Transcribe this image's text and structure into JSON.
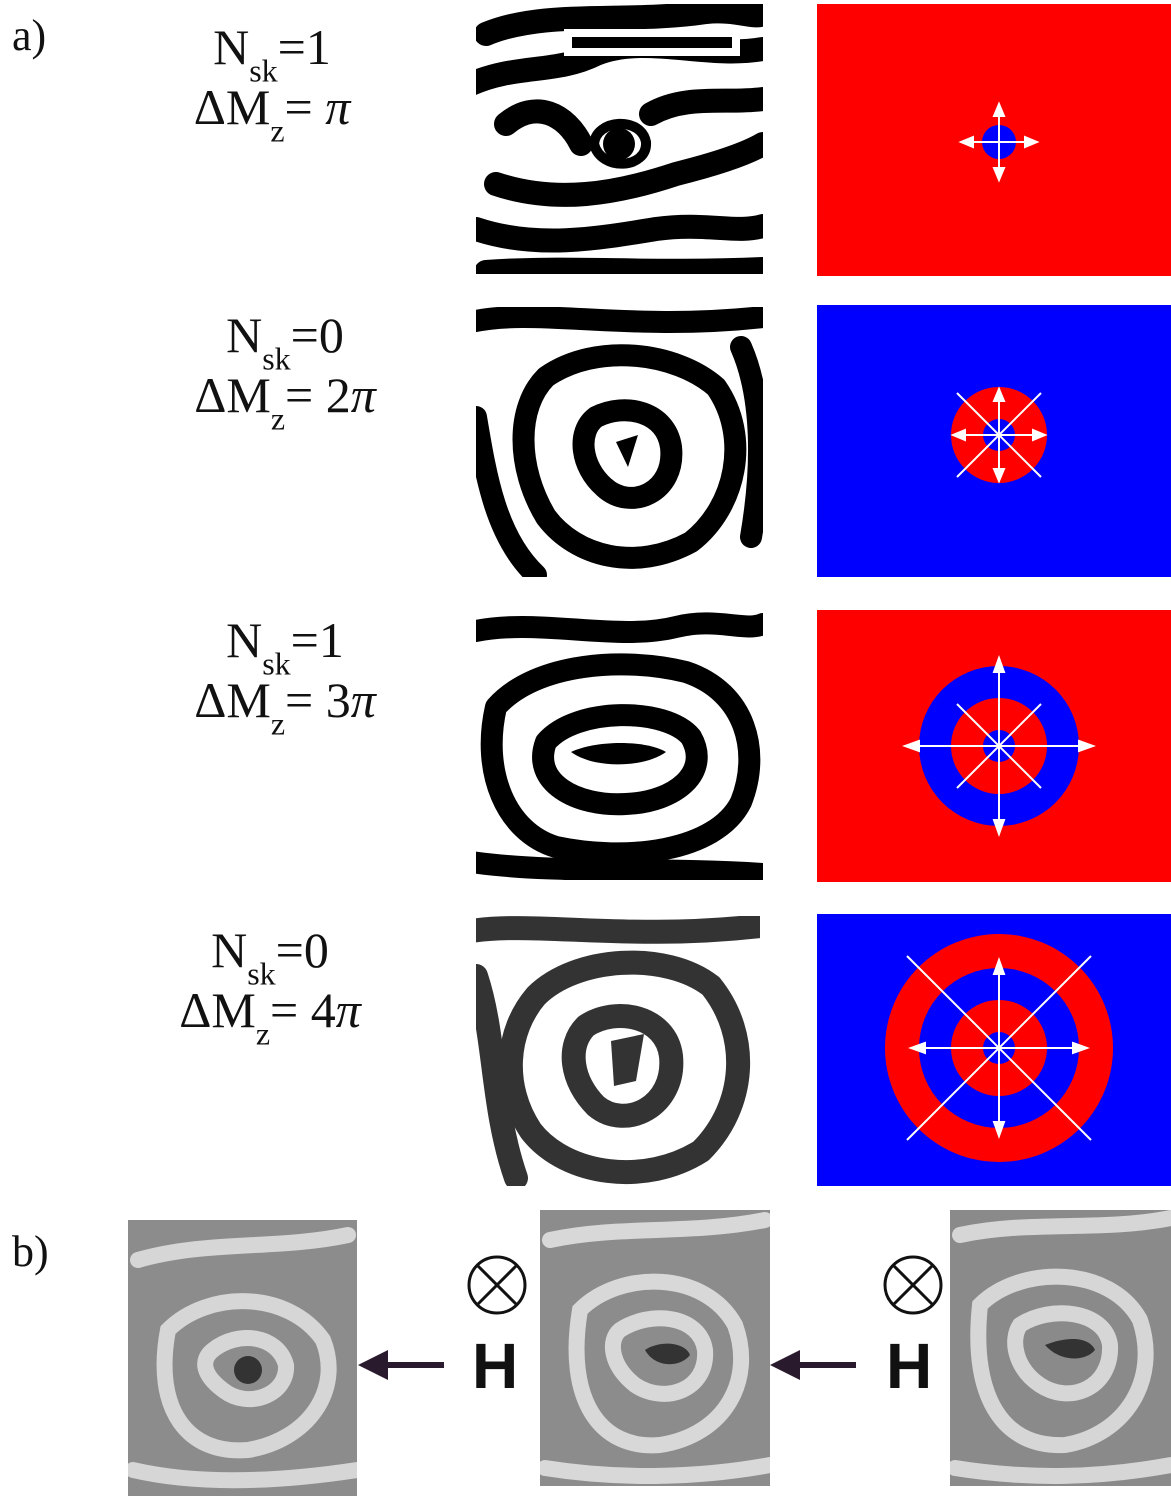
{
  "panel_a_label": "a)",
  "panel_b_label": "b)",
  "colors": {
    "red": "#ff0000",
    "blue": "#0000ff",
    "arrow": "#ffffff",
    "pointer": "#2a1a2e"
  },
  "rows": [
    {
      "nsk_symbol": "N",
      "nsk_sub": "sk",
      "nsk_value": "=1",
      "dm_symbol": "ΔM",
      "dm_sub": "z",
      "dm_eq": "= ",
      "dm_coef": "",
      "dm_pi": "π",
      "background": "red",
      "rings": 1
    },
    {
      "nsk_symbol": "N",
      "nsk_sub": "sk",
      "nsk_value": "=0",
      "dm_symbol": "ΔM",
      "dm_sub": "z",
      "dm_eq": "= ",
      "dm_coef": "2",
      "dm_pi": "π",
      "background": "blue",
      "rings": 2
    },
    {
      "nsk_symbol": "N",
      "nsk_sub": "sk",
      "nsk_value": "=1",
      "dm_symbol": "ΔM",
      "dm_sub": "z",
      "dm_eq": "= ",
      "dm_coef": "3",
      "dm_pi": "π",
      "background": "red",
      "rings": 3
    },
    {
      "nsk_symbol": "N",
      "nsk_sub": "sk",
      "nsk_value": "=0",
      "dm_symbol": "ΔM",
      "dm_sub": "z",
      "dm_eq": "= ",
      "dm_coef": "4",
      "dm_pi": "π",
      "background": "blue",
      "rings": 4
    }
  ],
  "field": {
    "symbol": "⊗",
    "label": "H"
  }
}
